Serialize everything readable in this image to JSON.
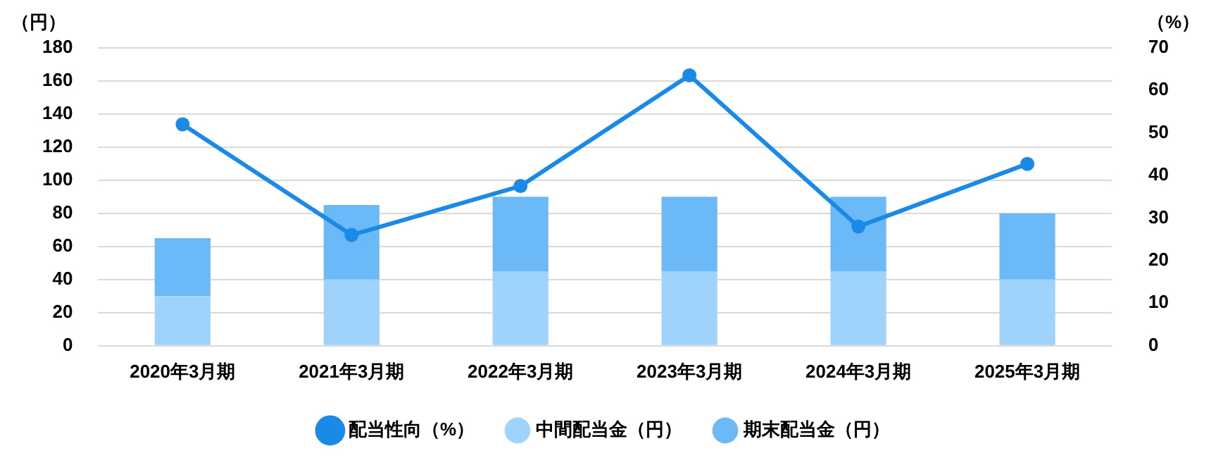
{
  "chart_data": {
    "type": "bar",
    "stacked": true,
    "categories": [
      "2020年3月期",
      "2021年3月期",
      "2022年3月期",
      "2023年3月期",
      "2024年3月期",
      "2025年3月期"
    ],
    "series": [
      {
        "name": "中間配当金（円）",
        "color": "#9fd3fb",
        "values": [
          30,
          40,
          45,
          45,
          45,
          40
        ]
      },
      {
        "name": "期末配当金（円）",
        "color": "#6cb9f8",
        "values": [
          35,
          45,
          45,
          45,
          45,
          40
        ]
      },
      {
        "name": "配当性向（%）",
        "type": "line",
        "axis": "y2",
        "color": "#1a8ae8",
        "values": [
          52,
          26,
          37.5,
          63.5,
          28,
          42.7
        ]
      }
    ],
    "ylabel": "（円）",
    "y2label": "（%）",
    "ylim": [
      0,
      180
    ],
    "yticks": [
      0,
      20,
      40,
      60,
      80,
      100,
      120,
      140,
      160,
      180
    ],
    "y2lim": [
      0,
      70
    ],
    "y2ticks": [
      0,
      10,
      20,
      30,
      40,
      50,
      60,
      70
    ],
    "grid": "y",
    "legend": "bottom",
    "marker": "circle",
    "line_style": "solid"
  }
}
